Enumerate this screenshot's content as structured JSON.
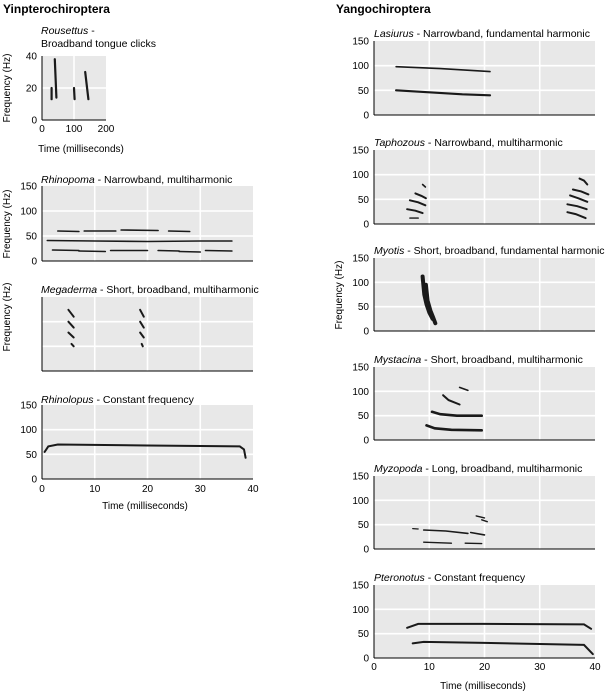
{
  "headings": {
    "left": "Yinpterochiroptera",
    "right": "Yangochiroptera"
  },
  "chart_data": [
    {
      "type": "line",
      "title_italic": "Rousettus",
      "title_rest": " -",
      "title_line2": "Broadband tongue clicks",
      "xlabel": "Time (milliseconds)",
      "ylabel": "Frequency (Hz)",
      "xlim": [
        0,
        200
      ],
      "ylim": [
        0,
        40
      ],
      "xticks": [
        0,
        100,
        200
      ],
      "yticks": [
        0,
        20,
        40
      ],
      "grid": true,
      "series": [
        {
          "width": 2.2,
          "points": [
            [
              30,
              20
            ],
            [
              30,
              13
            ]
          ]
        },
        {
          "width": 2.2,
          "points": [
            [
              40,
              38
            ],
            [
              45,
              14
            ]
          ]
        },
        {
          "width": 2.2,
          "points": [
            [
              100,
              20
            ],
            [
              102,
              13
            ]
          ]
        },
        {
          "width": 2.2,
          "points": [
            [
              135,
              30
            ],
            [
              145,
              13
            ]
          ]
        }
      ]
    },
    {
      "type": "line",
      "title_italic": "Rhinopoma",
      "title_rest": " - Narrowband, multiharmonic",
      "ylabel": "Frequency (Hz)",
      "xlim": [
        0,
        40
      ],
      "ylim": [
        0,
        150
      ],
      "xticks": [],
      "yticks": [
        0,
        50,
        100,
        150
      ],
      "grid": true,
      "series": [
        {
          "width": 1.6,
          "points": [
            [
              3,
              60
            ],
            [
              7,
              59
            ]
          ]
        },
        {
          "width": 1.6,
          "points": [
            [
              8,
              60
            ],
            [
              14,
              60
            ]
          ]
        },
        {
          "width": 1.6,
          "points": [
            [
              15,
              62
            ],
            [
              22,
              61
            ]
          ]
        },
        {
          "width": 1.6,
          "points": [
            [
              24,
              60
            ],
            [
              28,
              59
            ]
          ]
        },
        {
          "width": 1.6,
          "points": [
            [
              1,
              41
            ],
            [
              10,
              40
            ],
            [
              20,
              39
            ],
            [
              30,
              40
            ],
            [
              36,
              40
            ]
          ]
        },
        {
          "width": 1.6,
          "points": [
            [
              2,
              22
            ],
            [
              7,
              21
            ]
          ]
        },
        {
          "width": 1.6,
          "points": [
            [
              7,
              20
            ],
            [
              12,
              19
            ]
          ]
        },
        {
          "width": 1.6,
          "points": [
            [
              13,
              21
            ],
            [
              20,
              21
            ]
          ]
        },
        {
          "width": 1.6,
          "points": [
            [
              22,
              21
            ],
            [
              26,
              20
            ]
          ]
        },
        {
          "width": 1.6,
          "points": [
            [
              26,
              19
            ],
            [
              30,
              18
            ]
          ]
        },
        {
          "width": 1.6,
          "points": [
            [
              31,
              21
            ],
            [
              36,
              20
            ]
          ]
        }
      ]
    },
    {
      "type": "line",
      "title_italic": "Megaderma",
      "title_rest": " - Short, broadband, multiharmonic",
      "ylabel": "Frequency (Hz)",
      "xlim": [
        0,
        40
      ],
      "ylim": [
        0,
        150
      ],
      "xticks": [],
      "yticks": [],
      "grid": true,
      "series": [
        {
          "width": 2,
          "points": [
            [
              5,
              124
            ],
            [
              6,
              110
            ]
          ]
        },
        {
          "width": 2,
          "points": [
            [
              5,
              100
            ],
            [
              6,
              88
            ]
          ]
        },
        {
          "width": 2,
          "points": [
            [
              5,
              78
            ],
            [
              6,
              68
            ]
          ]
        },
        {
          "width": 2,
          "points": [
            [
              5.6,
              55
            ],
            [
              6,
              50
            ]
          ]
        },
        {
          "width": 2,
          "points": [
            [
              18.6,
              124
            ],
            [
              19.3,
              110
            ]
          ]
        },
        {
          "width": 2,
          "points": [
            [
              18.6,
              100
            ],
            [
              19.3,
              88
            ]
          ]
        },
        {
          "width": 2,
          "points": [
            [
              18.6,
              78
            ],
            [
              19.3,
              68
            ]
          ]
        },
        {
          "width": 2,
          "points": [
            [
              18.9,
              55
            ],
            [
              19.1,
              50
            ]
          ]
        }
      ]
    },
    {
      "type": "line",
      "title_italic": "Rhinolopus",
      "title_rest": " -  Constant frequency",
      "xlabel": "Time (milliseconds)",
      "xlim": [
        0,
        40
      ],
      "ylim": [
        0,
        150
      ],
      "xticks": [
        0,
        10,
        20,
        30,
        40
      ],
      "yticks": [
        0,
        50,
        100,
        150
      ],
      "grid": true,
      "series": [
        {
          "width": 2,
          "points": [
            [
              0.5,
              55
            ],
            [
              1.2,
              66
            ],
            [
              3,
              70
            ],
            [
              20,
              68
            ],
            [
              37.5,
              66
            ],
            [
              38.3,
              60
            ],
            [
              38.6,
              43
            ]
          ]
        }
      ]
    },
    {
      "type": "line",
      "title_italic": "Lasiurus",
      "title_rest": " - Narrowband, fundamental harmonic",
      "xlim": [
        0,
        40
      ],
      "ylim": [
        0,
        150
      ],
      "xticks": [],
      "yticks": [
        0,
        50,
        100,
        150
      ],
      "grid": true,
      "series": [
        {
          "width": 1.6,
          "points": [
            [
              4,
              98
            ],
            [
              12,
              94
            ],
            [
              18,
              90
            ],
            [
              21,
              88
            ]
          ]
        },
        {
          "width": 2.2,
          "points": [
            [
              4,
              50
            ],
            [
              10,
              46
            ],
            [
              16,
              42
            ],
            [
              21,
              40
            ]
          ]
        }
      ]
    },
    {
      "type": "line",
      "title_italic": "Taphozous",
      "title_rest": " - Narrowband, multiharmonic",
      "xlim": [
        0,
        40
      ],
      "ylim": [
        0,
        150
      ],
      "xticks": [],
      "yticks": [
        0,
        50,
        100,
        150
      ],
      "grid": true,
      "series": [
        {
          "width": 1.4,
          "points": [
            [
              6.5,
              12
            ],
            [
              8,
              12
            ]
          ]
        },
        {
          "width": 2,
          "points": [
            [
              6,
              30
            ],
            [
              7.5,
              27
            ],
            [
              8.8,
              22
            ]
          ]
        },
        {
          "width": 2,
          "points": [
            [
              6.5,
              48
            ],
            [
              8,
              44
            ],
            [
              9.3,
              38
            ]
          ]
        },
        {
          "width": 2,
          "points": [
            [
              7.5,
              62
            ],
            [
              8.6,
              57
            ],
            [
              9.4,
              52
            ]
          ]
        },
        {
          "width": 1.6,
          "points": [
            [
              8.8,
              80
            ],
            [
              9.3,
              75
            ]
          ]
        },
        {
          "width": 2,
          "points": [
            [
              35,
              24
            ],
            [
              36.5,
              20
            ],
            [
              38.3,
              12
            ]
          ]
        },
        {
          "width": 2,
          "points": [
            [
              35,
              40
            ],
            [
              36.8,
              36
            ],
            [
              38.5,
              30
            ]
          ]
        },
        {
          "width": 2,
          "points": [
            [
              35.5,
              58
            ],
            [
              37,
              52
            ],
            [
              38.6,
              45
            ]
          ]
        },
        {
          "width": 2,
          "points": [
            [
              36,
              70
            ],
            [
              37.5,
              66
            ],
            [
              38.8,
              60
            ]
          ]
        },
        {
          "width": 2,
          "points": [
            [
              37.2,
              92
            ],
            [
              38,
              88
            ],
            [
              38.6,
              80
            ]
          ]
        }
      ]
    },
    {
      "type": "line",
      "title_italic": "Myotis",
      "title_rest": " - Short, broadband, fundamental harmonic",
      "ylabel": "Frequency (Hz)",
      "xlim": [
        0,
        40
      ],
      "ylim": [
        0,
        150
      ],
      "xticks": [],
      "yticks": [
        0,
        50,
        100,
        150
      ],
      "grid": true,
      "series": [
        {
          "width": 4,
          "points": [
            [
              8.8,
              112
            ],
            [
              9.1,
              75
            ],
            [
              9.5,
              55
            ],
            [
              10,
              38
            ],
            [
              10.6,
              25
            ]
          ]
        },
        {
          "width": 4,
          "points": [
            [
              9.4,
              95
            ],
            [
              9.7,
              62
            ],
            [
              10.2,
              42
            ],
            [
              10.7,
              28
            ],
            [
              11.1,
              16
            ]
          ]
        }
      ]
    },
    {
      "type": "line",
      "title_italic": "Mystacina",
      "title_rest": " - Short, broadband, multiharmonic",
      "xlim": [
        0,
        40
      ],
      "ylim": [
        0,
        150
      ],
      "xticks": [],
      "yticks": [
        0,
        50,
        100,
        150
      ],
      "grid": true,
      "series": [
        {
          "width": 2.6,
          "points": [
            [
              9.5,
              30
            ],
            [
              11,
              24
            ],
            [
              14,
              21
            ],
            [
              19.5,
              20
            ]
          ]
        },
        {
          "width": 2.6,
          "points": [
            [
              10.5,
              58
            ],
            [
              12,
              53
            ],
            [
              15,
              50
            ],
            [
              19.5,
              50
            ]
          ]
        },
        {
          "width": 2,
          "points": [
            [
              12.5,
              92
            ],
            [
              13.5,
              82
            ],
            [
              15.5,
              73
            ]
          ]
        },
        {
          "width": 1.6,
          "points": [
            [
              15.5,
              108
            ],
            [
              17,
              102
            ]
          ]
        }
      ]
    },
    {
      "type": "line",
      "title_italic": "Myzopoda",
      "title_rest": " - Long, broadband, multiharmonic",
      "xlim": [
        0,
        40
      ],
      "ylim": [
        0,
        150
      ],
      "xticks": [],
      "yticks": [
        0,
        50,
        100,
        150
      ],
      "grid": true,
      "series": [
        {
          "width": 1.2,
          "points": [
            [
              7,
              42
            ],
            [
              8,
              41
            ]
          ]
        },
        {
          "width": 1.6,
          "points": [
            [
              9,
              39
            ],
            [
              13,
              37
            ],
            [
              17,
              32
            ]
          ]
        },
        {
          "width": 1.4,
          "points": [
            [
              9,
              14
            ],
            [
              14,
              12
            ]
          ]
        },
        {
          "width": 1.4,
          "points": [
            [
              16.5,
              12
            ],
            [
              19.5,
              11
            ]
          ]
        },
        {
          "width": 1.6,
          "points": [
            [
              17.5,
              34
            ],
            [
              20,
              29
            ]
          ]
        },
        {
          "width": 1.4,
          "points": [
            [
              18.5,
              68
            ],
            [
              20,
              64
            ]
          ]
        },
        {
          "width": 1.4,
          "points": [
            [
              19.5,
              60
            ],
            [
              20.5,
              56
            ]
          ]
        }
      ]
    },
    {
      "type": "line",
      "title_italic": "Pteronotus",
      "title_rest": " - Constant frequency",
      "xlabel": "Time (milliseconds)",
      "xlim": [
        0,
        40
      ],
      "ylim": [
        0,
        150
      ],
      "xticks": [
        0,
        10,
        20,
        30,
        40
      ],
      "yticks": [
        0,
        50,
        100,
        150
      ],
      "grid": true,
      "series": [
        {
          "width": 2,
          "points": [
            [
              6,
              62
            ],
            [
              8,
              70
            ],
            [
              20,
              70
            ],
            [
              38,
              69
            ],
            [
              39.3,
              60
            ]
          ]
        },
        {
          "width": 2,
          "points": [
            [
              7,
              30
            ],
            [
              9,
              33
            ],
            [
              20,
              31
            ],
            [
              38,
              27
            ],
            [
              39.6,
              8
            ]
          ]
        }
      ]
    }
  ]
}
